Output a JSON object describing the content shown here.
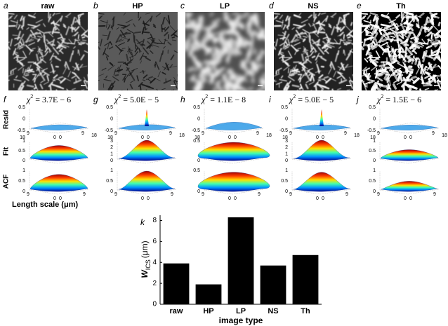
{
  "panels": [
    {
      "letter": "a",
      "title": "raw"
    },
    {
      "letter": "b",
      "title": "HP"
    },
    {
      "letter": "c",
      "title": "LP"
    },
    {
      "letter": "d",
      "title": "NS"
    },
    {
      "letter": "e",
      "title": "Th"
    }
  ],
  "fits": [
    {
      "letter": "f",
      "symbol": "χ",
      "power": "2",
      "value": "= 3.7E − 6",
      "resid_z": [
        "0.5",
        "0",
        "-0.5"
      ],
      "fit_z": [
        "1",
        "0.5",
        "0"
      ],
      "acf_z": [
        "1",
        "0.5",
        "0"
      ]
    },
    {
      "letter": "g",
      "symbol": "χ",
      "power": "2",
      "value": "= 5.0E − 5",
      "resid_z": [
        "0.5",
        "0",
        "-0.5"
      ],
      "fit_z": [
        "3",
        "2",
        "1",
        "0"
      ],
      "acf_z": [
        "1",
        "0.5",
        "0"
      ]
    },
    {
      "letter": "h",
      "symbol": "χ",
      "power": "2",
      "value": "= 1.1E − 8",
      "resid_z": [
        "0.5",
        "0",
        "-0.5"
      ],
      "fit_z": [
        "0.5",
        "0"
      ],
      "acf_z": [
        "0.5",
        "0"
      ]
    },
    {
      "letter": "i",
      "symbol": "χ",
      "power": "2",
      "value": "= 5.0E − 5",
      "resid_z": [
        "0.5",
        "0",
        "-0.5"
      ],
      "fit_z": [
        "3",
        "2",
        "1",
        "0"
      ],
      "acf_z": [
        "1",
        "0.5",
        "0"
      ]
    },
    {
      "letter": "j",
      "symbol": "χ",
      "power": "2",
      "value": "= 1.5E − 6",
      "resid_z": [
        "0.5",
        "0",
        "-0.5"
      ],
      "fit_z": [
        "1",
        "0.5",
        "0"
      ],
      "acf_z": [
        "1",
        "0.5",
        "0"
      ]
    }
  ],
  "row_labels": [
    "Resid",
    "Fit",
    "ACF"
  ],
  "surface_xy_resid": [
    "18",
    "9",
    "0",
    "0",
    "9",
    "18"
  ],
  "surface_xy_acf": [
    "9",
    "0",
    "0",
    "9"
  ],
  "length_scale_label": "Length scale (μm)",
  "chart_data": {
    "type": "bar",
    "letter": "k",
    "categories": [
      "raw",
      "HP",
      "LP",
      "NS",
      "Th"
    ],
    "values": [
      3.9,
      1.9,
      8.3,
      3.7,
      4.7
    ],
    "color": "#000000",
    "ylim": [
      0,
      8.5
    ],
    "yticks": [
      0,
      2,
      4,
      6,
      8
    ],
    "ylabel_symbol": "W",
    "ylabel_subscript": "ICS",
    "ylabel_unit": "(μm)",
    "xlabel": "image type",
    "grid": false
  }
}
